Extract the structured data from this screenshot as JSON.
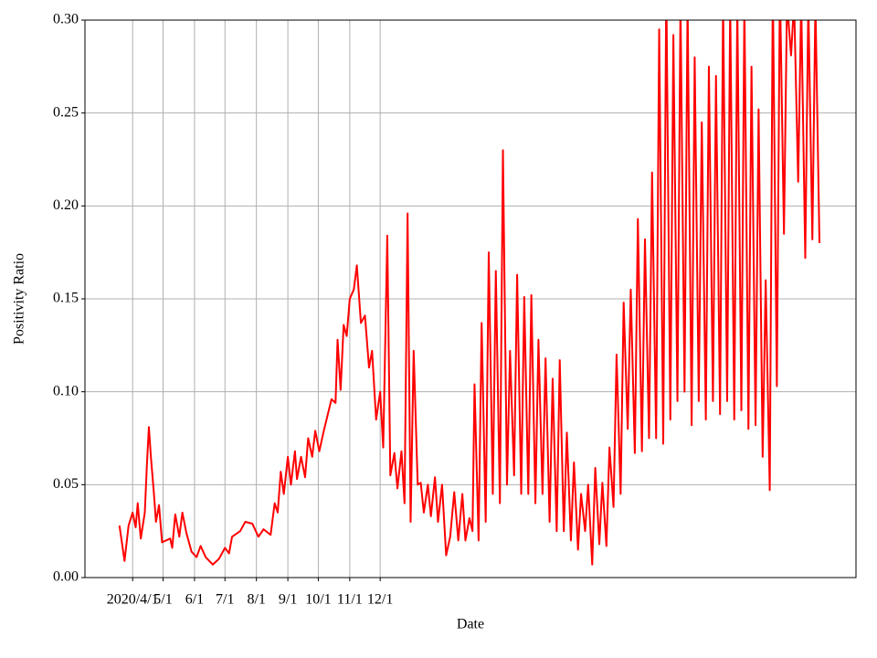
{
  "chart_data": {
    "type": "line",
    "x_label": "Date",
    "y_label": "Positivity Ratio",
    "x": [
      "2020-03-19",
      "2020-03-24",
      "2020-03-28",
      "2020-04-01",
      "2020-04-04",
      "2020-04-06",
      "2020-04-09",
      "2020-04-13",
      "2020-04-15",
      "2020-04-17",
      "2020-04-19",
      "2020-04-22",
      "2020-04-24",
      "2020-04-27",
      "2020-04-30",
      "2020-05-08",
      "2020-05-10",
      "2020-05-13",
      "2020-05-17",
      "2020-05-20",
      "2020-05-24",
      "2020-05-29",
      "2020-06-03",
      "2020-06-07",
      "2020-06-12",
      "2020-06-19",
      "2020-06-25",
      "2020-07-01",
      "2020-07-05",
      "2020-07-08",
      "2020-07-16",
      "2020-07-21",
      "2020-07-28",
      "2020-08-03",
      "2020-08-08",
      "2020-08-15",
      "2020-08-19",
      "2020-08-22",
      "2020-08-25",
      "2020-08-28",
      "2020-09-01",
      "2020-09-04",
      "2020-09-08",
      "2020-09-10",
      "2020-09-14",
      "2020-09-18",
      "2020-09-21",
      "2020-09-25",
      "2020-09-28",
      "2020-10-02",
      "2020-10-06",
      "2020-10-10",
      "2020-10-14",
      "2020-10-18",
      "2020-10-20",
      "2020-10-23",
      "2020-10-26",
      "2020-10-29",
      "2020-11-01",
      "2020-11-05",
      "2020-11-08",
      "2020-11-12",
      "2020-11-16",
      "2020-11-20",
      "2020-11-23",
      "2020-11-27",
      "2020-12-01",
      "2020-12-04",
      "2020-12-08",
      "2020-12-11",
      "2020-12-15",
      "2020-12-18",
      "2020-12-22",
      "2020-12-25",
      "2020-12-28",
      "2020-12-31",
      "2021-01-03",
      "2021-01-07",
      "2021-01-10",
      "2021-01-13",
      "2021-01-17",
      "2021-01-20",
      "2021-01-24",
      "2021-01-27",
      "2021-01-31",
      "2021-02-04",
      "2021-02-08",
      "2021-02-12",
      "2021-02-16",
      "2021-02-20",
      "2021-02-23",
      "2021-02-27",
      "2021-03-02",
      "2021-03-04",
      "2021-03-08",
      "2021-03-11",
      "2021-03-15",
      "2021-03-18",
      "2021-03-22",
      "2021-03-25",
      "2021-03-29",
      "2021-04-01",
      "2021-04-05",
      "2021-04-08",
      "2021-04-12",
      "2021-04-15",
      "2021-04-19",
      "2021-04-22",
      "2021-04-26",
      "2021-04-29",
      "2021-05-03",
      "2021-05-06",
      "2021-05-10",
      "2021-05-13",
      "2021-05-17",
      "2021-05-20",
      "2021-05-24",
      "2021-05-27",
      "2021-05-31",
      "2021-06-03",
      "2021-06-07",
      "2021-06-10",
      "2021-06-14",
      "2021-06-17",
      "2021-06-21",
      "2021-06-24",
      "2021-06-28",
      "2021-07-01",
      "2021-07-05",
      "2021-07-08",
      "2021-07-12",
      "2021-07-15",
      "2021-07-19",
      "2021-07-22",
      "2021-07-26",
      "2021-07-29",
      "2021-08-02",
      "2021-08-05",
      "2021-08-09",
      "2021-08-12",
      "2021-08-16",
      "2021-08-19",
      "2021-08-23",
      "2021-08-26",
      "2021-08-30",
      "2021-09-02",
      "2021-09-06",
      "2021-09-09",
      "2021-09-13",
      "2021-09-16",
      "2021-09-20",
      "2021-09-23",
      "2021-09-27",
      "2021-09-30",
      "2021-10-04",
      "2021-10-07",
      "2021-10-11",
      "2021-10-14",
      "2021-10-18",
      "2021-10-21",
      "2021-10-25",
      "2021-10-28",
      "2021-11-01",
      "2021-11-04",
      "2021-11-08",
      "2021-11-11",
      "2021-11-15",
      "2021-11-18",
      "2021-11-22",
      "2021-11-25",
      "2021-11-29",
      "2021-12-02",
      "2021-12-06",
      "2021-12-09",
      "2021-12-13",
      "2021-12-16",
      "2021-12-20",
      "2021-12-23",
      "2021-12-27",
      "2021-12-30",
      "2022-01-03",
      "2022-01-06",
      "2022-01-10",
      "2022-01-13",
      "2022-01-17",
      "2022-01-20",
      "2022-01-24",
      "2022-01-27",
      "2022-01-31",
      "2022-02-03",
      "2022-02-07"
    ],
    "series": [
      {
        "name": "Positivity Ratio",
        "color": "#ff0000",
        "values": [
          0.028,
          0.009,
          0.028,
          0.035,
          0.027,
          0.04,
          0.021,
          0.035,
          0.06,
          0.081,
          0.065,
          0.045,
          0.03,
          0.039,
          0.019,
          0.021,
          0.016,
          0.034,
          0.022,
          0.035,
          0.024,
          0.014,
          0.011,
          0.017,
          0.011,
          0.007,
          0.01,
          0.016,
          0.013,
          0.022,
          0.025,
          0.03,
          0.029,
          0.022,
          0.026,
          0.023,
          0.04,
          0.035,
          0.057,
          0.045,
          0.065,
          0.05,
          0.068,
          0.053,
          0.065,
          0.054,
          0.075,
          0.065,
          0.079,
          0.068,
          0.078,
          0.087,
          0.096,
          0.094,
          0.128,
          0.101,
          0.136,
          0.13,
          0.15,
          0.155,
          0.168,
          0.137,
          0.141,
          0.113,
          0.122,
          0.085,
          0.1,
          0.07,
          0.184,
          0.055,
          0.067,
          0.048,
          0.068,
          0.04,
          0.196,
          0.03,
          0.122,
          0.05,
          0.051,
          0.035,
          0.05,
          0.033,
          0.054,
          0.03,
          0.05,
          0.012,
          0.022,
          0.046,
          0.02,
          0.045,
          0.02,
          0.032,
          0.025,
          0.104,
          0.02,
          0.137,
          0.03,
          0.175,
          0.045,
          0.165,
          0.04,
          0.23,
          0.05,
          0.122,
          0.055,
          0.163,
          0.045,
          0.151,
          0.045,
          0.152,
          0.04,
          0.128,
          0.045,
          0.118,
          0.03,
          0.107,
          0.025,
          0.117,
          0.025,
          0.078,
          0.02,
          0.062,
          0.015,
          0.045,
          0.025,
          0.05,
          0.007,
          0.059,
          0.018,
          0.051,
          0.017,
          0.07,
          0.038,
          0.12,
          0.045,
          0.148,
          0.08,
          0.155,
          0.067,
          0.193,
          0.068,
          0.182,
          0.075,
          0.218,
          0.075,
          0.295,
          0.072,
          0.32,
          0.085,
          0.292,
          0.095,
          0.31,
          0.1,
          0.31,
          0.082,
          0.28,
          0.095,
          0.245,
          0.085,
          0.275,
          0.095,
          0.27,
          0.088,
          0.31,
          0.095,
          0.31,
          0.085,
          0.31,
          0.09,
          0.31,
          0.08,
          0.275,
          0.082,
          0.252,
          0.065,
          0.16,
          0.047,
          0.32,
          0.103,
          0.32,
          0.185,
          0.31,
          0.281,
          0.31,
          0.213,
          0.31,
          0.172,
          0.31,
          0.182,
          0.31,
          0.18
        ]
      }
    ],
    "xlim": [
      "2020-02-14",
      "2022-03-15"
    ],
    "xticks": [
      {
        "value": "2020-04-01",
        "label": "2020/4/1"
      },
      {
        "value": "2020-05-01",
        "label": "5/1"
      },
      {
        "value": "2020-06-01",
        "label": "6/1"
      },
      {
        "value": "2020-07-01",
        "label": "7/1"
      },
      {
        "value": "2020-08-01",
        "label": "8/1"
      },
      {
        "value": "2020-09-01",
        "label": "9/1"
      },
      {
        "value": "2020-10-01",
        "label": "10/1"
      },
      {
        "value": "2020-11-01",
        "label": "11/1"
      },
      {
        "value": "2020-12-01",
        "label": "12/1"
      }
    ],
    "ylim": [
      0,
      0.3
    ],
    "yticks": [
      {
        "value": 0,
        "label": "0.00"
      },
      {
        "value": 0.05,
        "label": "0.05"
      },
      {
        "value": 0.1,
        "label": "0.10"
      },
      {
        "value": 0.15,
        "label": "0.15"
      },
      {
        "value": 0.2,
        "label": "0.20"
      },
      {
        "value": 0.25,
        "label": "0.25"
      },
      {
        "value": 0.3,
        "label": "0.30"
      }
    ],
    "grid": true
  }
}
